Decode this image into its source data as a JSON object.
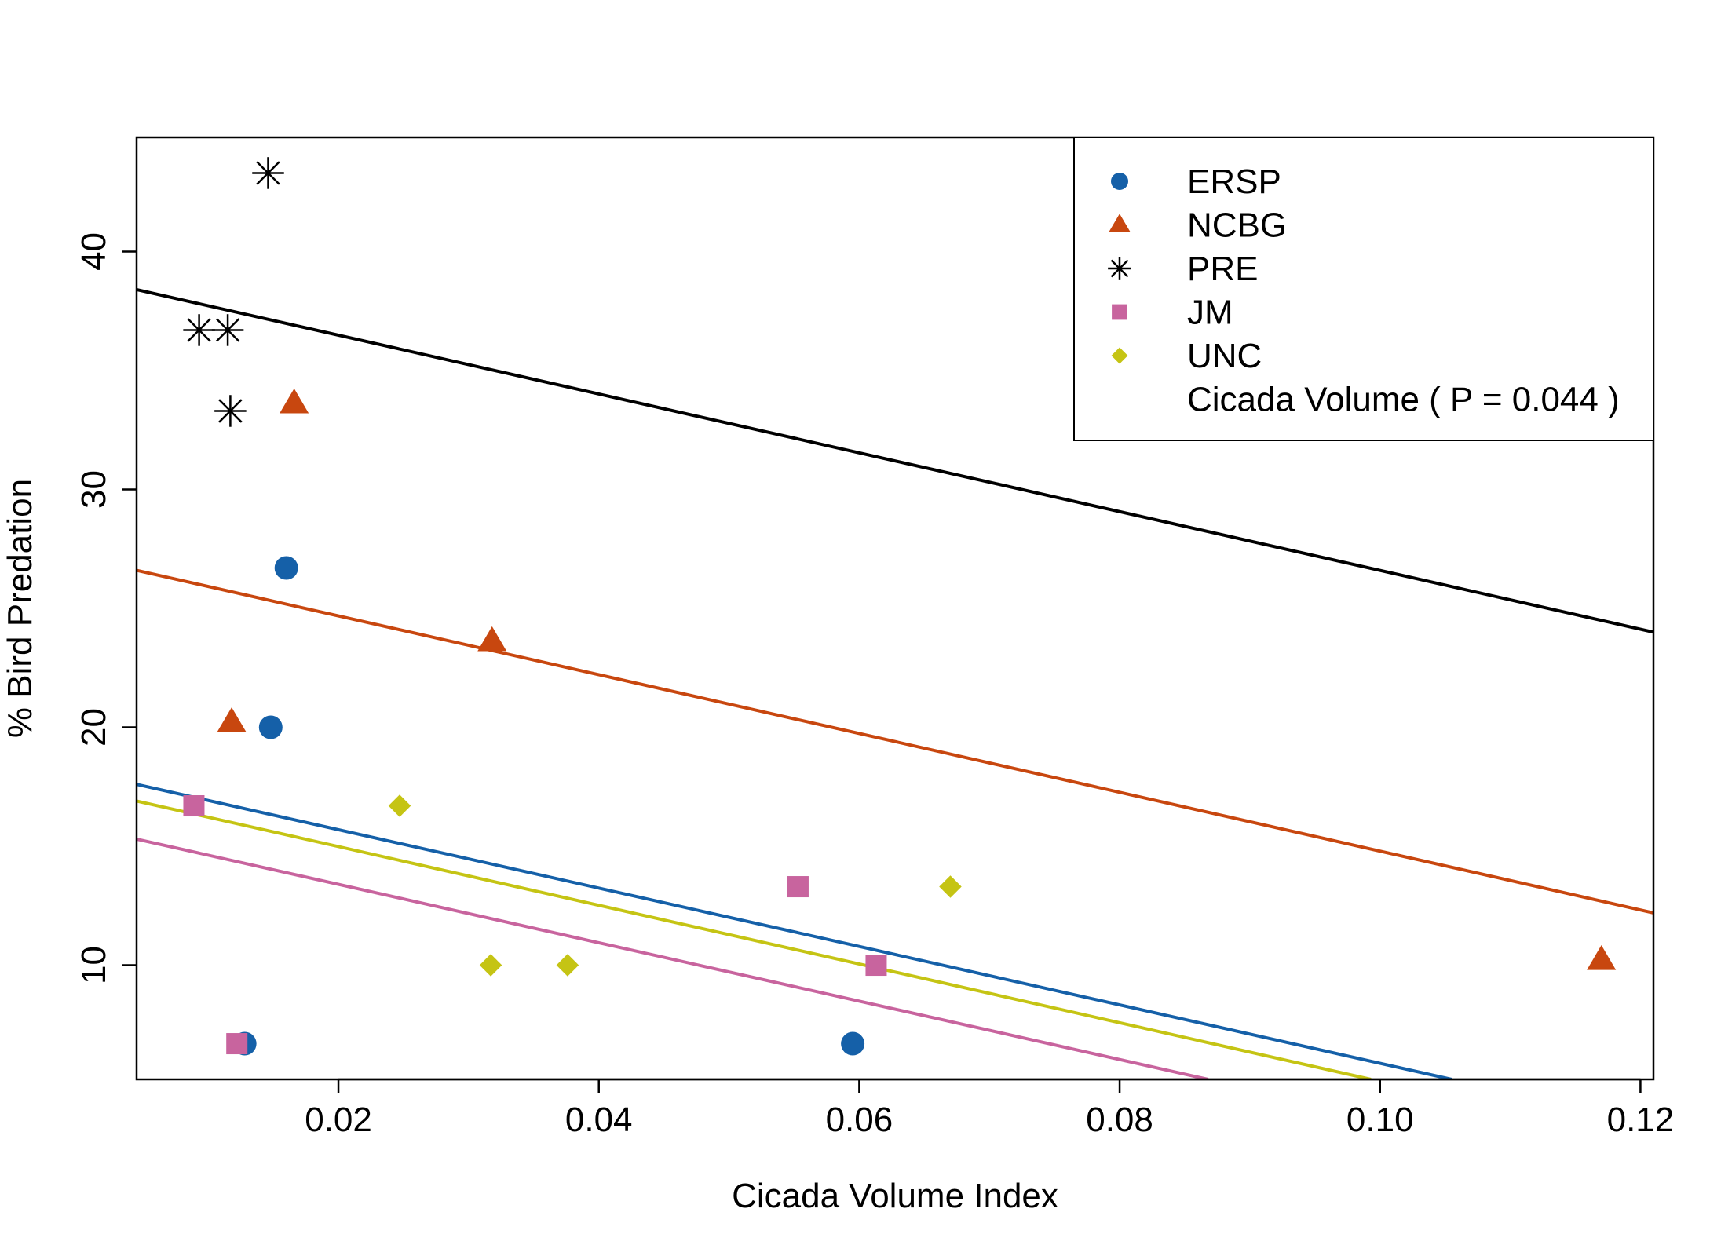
{
  "chart_data": {
    "type": "scatter",
    "title": "",
    "xlabel": "Cicada Volume Index",
    "ylabel": "% Bird Predation",
    "xlim": [
      0.0045,
      0.121
    ],
    "ylim": [
      5.2,
      44.8
    ],
    "x_ticks": [
      0.02,
      0.04,
      0.06,
      0.08,
      0.1,
      0.12
    ],
    "x_tick_labels": [
      "0.02",
      "0.04",
      "0.06",
      "0.08",
      "0.10",
      "0.12"
    ],
    "y_ticks": [
      10,
      20,
      30,
      40
    ],
    "y_tick_labels": [
      "10",
      "20",
      "30",
      "40"
    ],
    "grid": false,
    "legend_position": "top-right",
    "series": [
      {
        "name": "ERSP",
        "marker": "circle",
        "color": "#1560a8",
        "points": [
          [
            0.016,
            26.7
          ],
          [
            0.0148,
            20.0
          ],
          [
            0.0128,
            6.7
          ],
          [
            0.0595,
            6.7
          ]
        ],
        "fit_line": [
          [
            0.0045,
            17.6
          ],
          [
            0.1055,
            5.2
          ]
        ]
      },
      {
        "name": "NCBG",
        "marker": "triangle",
        "color": "#c8470f",
        "points": [
          [
            0.0166,
            33.6
          ],
          [
            0.0118,
            20.2
          ],
          [
            0.0318,
            23.6
          ],
          [
            0.117,
            10.2
          ]
        ],
        "fit_line": [
          [
            0.0045,
            26.6
          ],
          [
            0.121,
            12.2
          ]
        ]
      },
      {
        "name": "PRE",
        "marker": "asterisk",
        "color": "#000000",
        "points": [
          [
            0.0146,
            43.3
          ],
          [
            0.0093,
            36.7
          ],
          [
            0.0115,
            36.7
          ],
          [
            0.0117,
            33.3
          ]
        ],
        "fit_line": [
          [
            0.0045,
            38.4
          ],
          [
            0.121,
            24.0
          ]
        ]
      },
      {
        "name": "JM",
        "marker": "square",
        "color": "#c8649e",
        "points": [
          [
            0.0089,
            16.7
          ],
          [
            0.0122,
            6.7
          ],
          [
            0.0553,
            13.3
          ],
          [
            0.0613,
            10.0
          ]
        ],
        "fit_line": [
          [
            0.0045,
            15.3
          ],
          [
            0.0868,
            5.2
          ]
        ]
      },
      {
        "name": "UNC",
        "marker": "diamond",
        "color": "#c5c414",
        "points": [
          [
            0.0247,
            16.7
          ],
          [
            0.0317,
            10.0
          ],
          [
            0.0376,
            10.0
          ],
          [
            0.067,
            13.3
          ]
        ],
        "fit_line": [
          [
            0.0045,
            16.9
          ],
          [
            0.0993,
            5.2
          ]
        ]
      }
    ],
    "legend_extra": "Cicada Volume ( P = 0.044 )"
  }
}
